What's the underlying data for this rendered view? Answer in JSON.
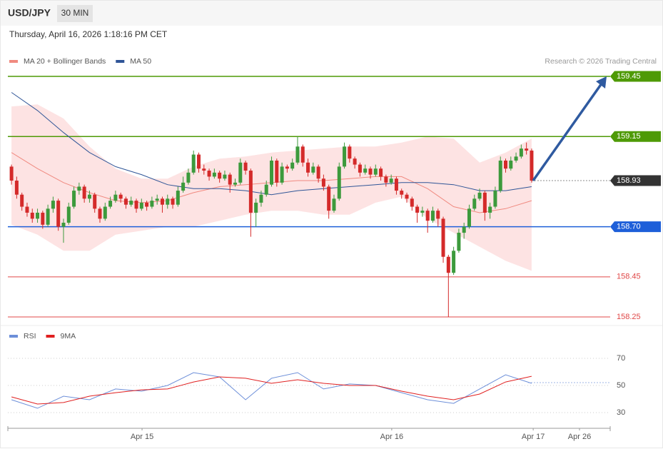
{
  "header": {
    "symbol": "USD/JPY",
    "interval": "30 MIN",
    "timestamp": "Thursday, April 16, 2026 1:18:16 PM CET",
    "credit": "Research © 2026 Trading Central"
  },
  "chart_data": [
    {
      "type": "candlestick",
      "up_color": "#3c9a3c",
      "down_color": "#d42a2a",
      "xlim": [
        -0.7,
        115.1
      ],
      "ylim": [
        158.21,
        159.49
      ],
      "ohlc": [
        [
          159.0,
          159.01,
          158.91,
          158.93
        ],
        [
          158.93,
          158.95,
          158.84,
          158.86
        ],
        [
          158.86,
          158.87,
          158.78,
          158.8
        ],
        [
          158.8,
          158.82,
          158.75,
          158.77
        ],
        [
          158.77,
          158.79,
          158.72,
          158.74
        ],
        [
          158.74,
          158.79,
          158.72,
          158.77
        ],
        [
          158.77,
          158.78,
          158.69,
          158.71
        ],
        [
          158.71,
          158.81,
          158.7,
          158.79
        ],
        [
          158.79,
          158.85,
          158.77,
          158.83
        ],
        [
          158.83,
          158.84,
          158.68,
          158.7
        ],
        [
          158.7,
          158.74,
          158.62,
          158.72
        ],
        [
          158.72,
          158.82,
          158.71,
          158.8
        ],
        [
          158.8,
          158.9,
          158.79,
          158.88
        ],
        [
          158.88,
          158.92,
          158.86,
          158.9
        ],
        [
          158.9,
          158.91,
          158.82,
          158.84
        ],
        [
          158.84,
          158.88,
          158.82,
          158.86
        ],
        [
          158.86,
          158.87,
          158.77,
          158.79
        ],
        [
          158.79,
          158.8,
          158.72,
          158.74
        ],
        [
          158.74,
          158.82,
          158.73,
          158.8
        ],
        [
          158.8,
          158.85,
          158.79,
          158.83
        ],
        [
          158.83,
          158.88,
          158.82,
          158.86
        ],
        [
          158.86,
          158.87,
          158.82,
          158.84
        ],
        [
          158.84,
          158.85,
          158.79,
          158.81
        ],
        [
          158.81,
          158.85,
          158.8,
          158.83
        ],
        [
          158.83,
          158.84,
          158.77,
          158.79
        ],
        [
          158.79,
          158.84,
          158.78,
          158.82
        ],
        [
          158.82,
          158.83,
          158.78,
          158.8
        ],
        [
          158.8,
          158.85,
          158.79,
          158.83
        ],
        [
          158.83,
          158.86,
          158.81,
          158.84
        ],
        [
          158.84,
          158.85,
          158.77,
          158.81
        ],
        [
          158.81,
          158.86,
          158.79,
          158.84
        ],
        [
          158.84,
          158.85,
          158.79,
          158.81
        ],
        [
          158.81,
          158.9,
          158.8,
          158.88
        ],
        [
          158.88,
          158.95,
          158.87,
          158.92
        ],
        [
          158.92,
          158.99,
          158.91,
          158.97
        ],
        [
          158.97,
          159.08,
          158.96,
          159.06
        ],
        [
          159.06,
          159.07,
          158.97,
          158.99
        ],
        [
          158.99,
          159.01,
          158.96,
          158.98
        ],
        [
          158.98,
          158.99,
          158.93,
          158.95
        ],
        [
          158.95,
          158.99,
          158.94,
          158.97
        ],
        [
          158.97,
          158.98,
          158.92,
          158.94
        ],
        [
          158.94,
          158.98,
          158.93,
          158.96
        ],
        [
          158.96,
          158.97,
          158.87,
          158.91
        ],
        [
          158.91,
          158.94,
          158.9,
          158.92
        ],
        [
          158.92,
          159.04,
          158.91,
          159.02
        ],
        [
          159.02,
          159.03,
          158.96,
          158.98
        ],
        [
          158.98,
          158.99,
          158.65,
          158.77
        ],
        [
          158.77,
          158.84,
          158.7,
          158.82
        ],
        [
          158.82,
          158.88,
          158.8,
          158.86
        ],
        [
          158.86,
          158.93,
          158.85,
          158.91
        ],
        [
          158.91,
          159.05,
          158.9,
          159.03
        ],
        [
          159.03,
          159.04,
          158.9,
          158.92
        ],
        [
          158.92,
          159.02,
          158.91,
          159.0
        ],
        [
          159.0,
          159.01,
          158.97,
          158.99
        ],
        [
          158.99,
          159.04,
          158.98,
          159.02
        ],
        [
          159.02,
          159.15,
          159.01,
          159.1
        ],
        [
          159.1,
          159.11,
          159.0,
          159.02
        ],
        [
          159.02,
          159.04,
          158.95,
          158.97
        ],
        [
          158.97,
          159.02,
          158.96,
          159.0
        ],
        [
          159.0,
          159.01,
          158.92,
          158.94
        ],
        [
          158.94,
          158.96,
          158.88,
          158.9
        ],
        [
          158.9,
          158.91,
          158.74,
          158.78
        ],
        [
          158.78,
          158.86,
          158.77,
          158.84
        ],
        [
          158.84,
          159.02,
          158.83,
          159.0
        ],
        [
          159.0,
          159.12,
          158.99,
          159.1
        ],
        [
          159.1,
          159.11,
          159.02,
          159.04
        ],
        [
          159.04,
          159.05,
          158.99,
          159.01
        ],
        [
          159.01,
          159.02,
          158.95,
          158.97
        ],
        [
          158.97,
          159.01,
          158.96,
          158.99
        ],
        [
          158.99,
          159.0,
          158.94,
          158.96
        ],
        [
          158.96,
          159.01,
          158.95,
          158.99
        ],
        [
          158.99,
          159.0,
          158.93,
          158.95
        ],
        [
          158.95,
          158.96,
          158.9,
          158.92
        ],
        [
          158.92,
          158.96,
          158.91,
          158.94
        ],
        [
          158.94,
          158.95,
          158.86,
          158.88
        ],
        [
          158.88,
          158.89,
          158.84,
          158.86
        ],
        [
          158.86,
          158.87,
          158.82,
          158.84
        ],
        [
          158.84,
          158.85,
          158.78,
          158.8
        ],
        [
          158.8,
          158.81,
          158.72,
          158.77
        ],
        [
          158.77,
          158.8,
          158.75,
          158.78
        ],
        [
          158.78,
          158.79,
          158.67,
          158.73
        ],
        [
          158.73,
          158.8,
          158.72,
          158.78
        ],
        [
          158.78,
          158.79,
          158.7,
          158.74
        ],
        [
          158.74,
          158.75,
          158.52,
          158.55
        ],
        [
          158.55,
          158.56,
          158.25,
          158.47
        ],
        [
          158.47,
          158.6,
          158.46,
          158.58
        ],
        [
          158.58,
          158.69,
          158.57,
          158.67
        ],
        [
          158.67,
          158.72,
          158.64,
          158.7
        ],
        [
          158.7,
          158.81,
          158.69,
          158.79
        ],
        [
          158.79,
          158.86,
          158.78,
          158.84
        ],
        [
          158.84,
          158.89,
          158.83,
          158.87
        ],
        [
          158.87,
          158.88,
          158.73,
          158.77
        ],
        [
          158.77,
          158.82,
          158.74,
          158.8
        ],
        [
          158.8,
          158.9,
          158.79,
          158.88
        ],
        [
          158.88,
          159.05,
          158.87,
          159.03
        ],
        [
          159.03,
          159.04,
          158.97,
          158.99
        ],
        [
          158.99,
          159.05,
          158.98,
          159.03
        ],
        [
          159.03,
          159.07,
          159.02,
          159.05
        ],
        [
          159.05,
          159.11,
          159.04,
          159.09
        ],
        [
          159.09,
          159.12,
          159.06,
          159.08
        ],
        [
          159.08,
          159.09,
          158.92,
          158.93
        ]
      ],
      "overlays": {
        "x": [
          0,
          5,
          10,
          15,
          20,
          25,
          30,
          35,
          40,
          45,
          50,
          55,
          60,
          65,
          70,
          75,
          80,
          85,
          90,
          95,
          100
        ],
        "series": [
          {
            "name": "MA 20 + Bollinger Bands",
            "color": "#f08a80",
            "band_color": "#fde3e3",
            "values": [
              159.07,
              158.99,
              158.92,
              158.87,
              158.83,
              158.82,
              158.83,
              158.87,
              158.9,
              158.91,
              158.92,
              158.93,
              158.93,
              158.94,
              158.95,
              158.95,
              158.89,
              158.8,
              158.77,
              158.79,
              158.83
            ],
            "upper": [
              159.3,
              159.31,
              159.24,
              159.1,
              158.99,
              158.94,
              158.94,
              159.0,
              159.04,
              159.05,
              159.07,
              159.08,
              159.09,
              159.1,
              159.1,
              159.12,
              159.15,
              159.14,
              159.02,
              159.07,
              159.14
            ],
            "lower": [
              158.71,
              158.66,
              158.58,
              158.58,
              158.66,
              158.68,
              158.7,
              158.7,
              158.73,
              158.76,
              158.78,
              158.78,
              158.76,
              158.76,
              158.82,
              158.85,
              158.74,
              158.67,
              158.6,
              158.53,
              158.48
            ]
          },
          {
            "name": "MA 50",
            "color": "#2f5597",
            "values": [
              159.37,
              159.28,
              159.17,
              159.07,
              159.0,
              158.96,
              158.91,
              158.89,
              158.89,
              158.88,
              158.86,
              158.88,
              158.89,
              158.9,
              158.91,
              158.92,
              158.92,
              158.91,
              158.88,
              158.88,
              158.9
            ]
          }
        ]
      },
      "levels": [
        {
          "value": 159.45,
          "label": "159.45",
          "color": "#4e9a06",
          "style": "box"
        },
        {
          "value": 159.15,
          "label": "159.15",
          "color": "#4e9a06",
          "style": "box"
        },
        {
          "value": 158.93,
          "label": "158.93",
          "color": "#333333",
          "style": "current"
        },
        {
          "value": 158.7,
          "label": "158.70",
          "color": "#1e5fd9",
          "style": "box"
        },
        {
          "value": 158.45,
          "label": "158.45",
          "color": "#e04848",
          "style": "text"
        },
        {
          "value": 158.25,
          "label": "158.25",
          "color": "#e04848",
          "style": "text"
        }
      ],
      "xticks": [
        {
          "value": 25.1,
          "label": "Apr 15"
        },
        {
          "value": 73.1,
          "label": "Apr 16"
        },
        {
          "value": 100.3,
          "label": "Apr 17"
        },
        {
          "value": 109.2,
          "label": "Apr 26"
        }
      ]
    },
    {
      "type": "line",
      "xlim": [
        -0.7,
        115.1
      ],
      "ylim": [
        20,
        79
      ],
      "yticks": [
        30,
        50,
        70
      ],
      "grid": true,
      "x": [
        0,
        5,
        10,
        15,
        20,
        25,
        30,
        35,
        40,
        45,
        50,
        55,
        60,
        65,
        70,
        75,
        80,
        85,
        90,
        95,
        100
      ],
      "series": [
        {
          "name": "RSI",
          "color": "#6d8fd9",
          "values": [
            39.5,
            33.2,
            42.1,
            39.5,
            47.4,
            45.8,
            50.0,
            59.5,
            56.3,
            39.5,
            55.3,
            59.5,
            47.4,
            51.1,
            50.0,
            44.7,
            39.5,
            36.8,
            47.4,
            57.9,
            51.6
          ]
        },
        {
          "name": "9MA",
          "color": "#e02020",
          "values": [
            41.6,
            36.3,
            37.4,
            42.1,
            44.7,
            46.8,
            47.4,
            52.6,
            56.3,
            55.3,
            51.6,
            54.2,
            51.6,
            50.0,
            50.0,
            45.8,
            42.1,
            39.5,
            43.7,
            52.6,
            56.8
          ]
        }
      ]
    }
  ]
}
